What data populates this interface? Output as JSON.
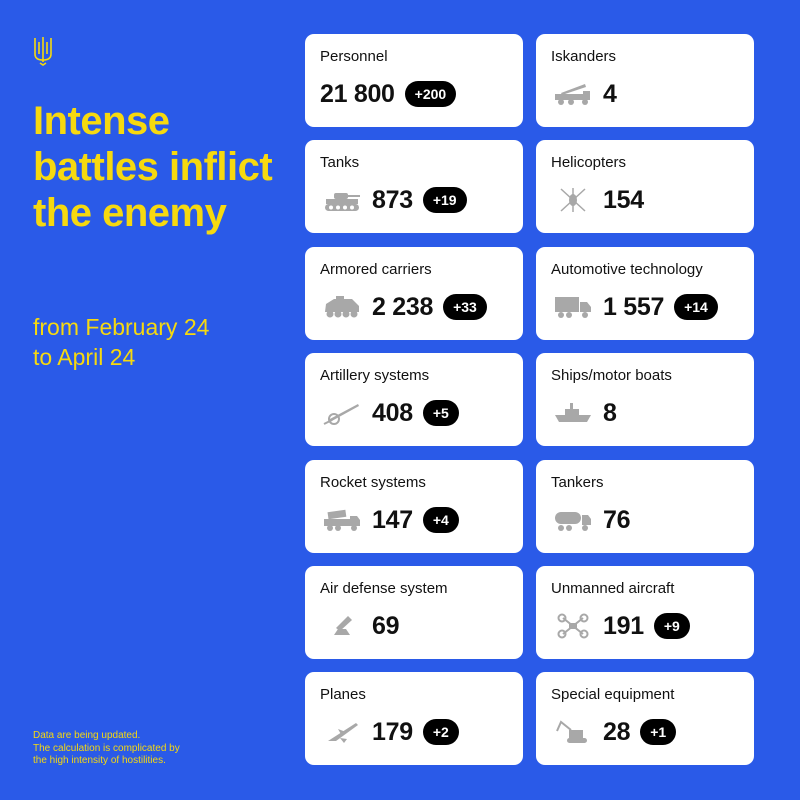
{
  "header": {
    "title": "Intense battles inflict the enemy",
    "subtitle_line1": "from February 24",
    "subtitle_line2": "to April 24"
  },
  "footer": {
    "line1": "Data are being updated.",
    "line2": "The calculation is complicated by",
    "line3": "the high intensity of hostilities."
  },
  "colors": {
    "background": "#2a5ae8",
    "accent": "#f6d90f",
    "card": "#ffffff",
    "badge": "#000000",
    "icon": "#a8a8a8"
  },
  "cards": [
    {
      "label": "Personnel",
      "value": "21 800",
      "delta": "+200",
      "icon": "none"
    },
    {
      "label": "Iskanders",
      "value": "4",
      "delta": null,
      "icon": "missile-launcher-icon"
    },
    {
      "label": "Tanks",
      "value": "873",
      "delta": "+19",
      "icon": "tank-icon"
    },
    {
      "label": "Helicopters",
      "value": "154",
      "delta": null,
      "icon": "helicopter-icon"
    },
    {
      "label": "Armored carriers",
      "value": "2 238",
      "delta": "+33",
      "icon": "armored-carrier-icon"
    },
    {
      "label": "Automotive technology",
      "value": "1 557",
      "delta": "+14",
      "icon": "truck-icon"
    },
    {
      "label": "Artillery systems",
      "value": "408",
      "delta": "+5",
      "icon": "artillery-icon"
    },
    {
      "label": "Ships/motor boats",
      "value": "8",
      "delta": null,
      "icon": "ship-icon"
    },
    {
      "label": "Rocket systems",
      "value": "147",
      "delta": "+4",
      "icon": "rocket-system-icon"
    },
    {
      "label": "Tankers",
      "value": "76",
      "delta": null,
      "icon": "tanker-truck-icon"
    },
    {
      "label": "Air defense system",
      "value": "69",
      "delta": null,
      "icon": "air-defense-icon"
    },
    {
      "label": "Unmanned aircraft",
      "value": "191",
      "delta": "+9",
      "icon": "drone-icon"
    },
    {
      "label": "Planes",
      "value": "179",
      "delta": "+2",
      "icon": "plane-icon"
    },
    {
      "label": "Special equipment",
      "value": "28",
      "delta": "+1",
      "icon": "excavator-icon"
    }
  ]
}
